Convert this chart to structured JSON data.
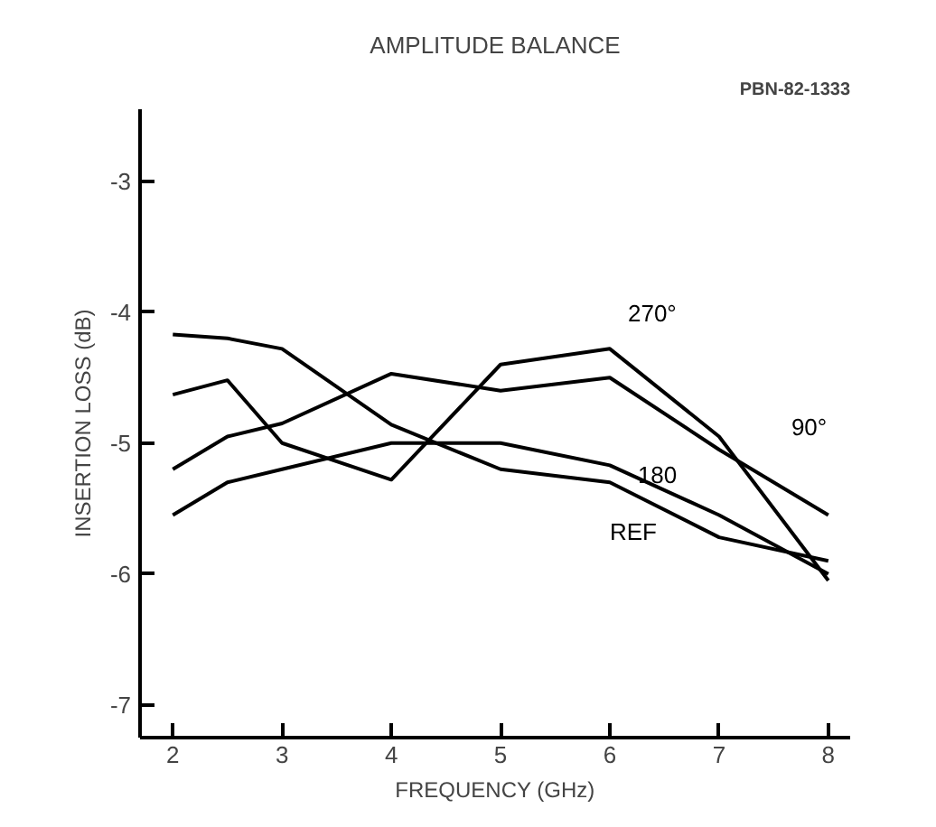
{
  "chart_data": {
    "type": "line",
    "title": "AMPLITUDE BALANCE",
    "xlabel": "FREQUENCY (GHz)",
    "ylabel": "INSERTION LOSS (dB)",
    "annotations": [
      "PBN-82-1333"
    ],
    "x": [
      2,
      2.5,
      3,
      4,
      5,
      6,
      7,
      8
    ],
    "series": [
      {
        "name": "270°",
        "color": "#000000",
        "values": [
          -4.63,
          -4.52,
          -5.0,
          -5.28,
          -4.4,
          -4.28,
          -4.95,
          -6.05
        ]
      },
      {
        "name": "90°",
        "color": "#000000",
        "values": [
          -5.2,
          -4.95,
          -4.85,
          -4.47,
          -4.6,
          -4.5,
          -5.05,
          -5.55
        ]
      },
      {
        "name": "180",
        "color": "#000000",
        "values": [
          -5.55,
          -5.3,
          -5.2,
          -5.0,
          -5.0,
          -5.17,
          -5.55,
          -6.0
        ]
      },
      {
        "name": "REF",
        "color": "#000000",
        "values": [
          -4.17,
          -4.2,
          -4.28,
          -4.86,
          -5.2,
          -5.3,
          -5.72,
          -5.9
        ]
      }
    ],
    "xlim": [
      1.7,
      8.2
    ],
    "ylim": [
      -7.25,
      -2.45
    ],
    "xticks": [
      2,
      3,
      4,
      5,
      6,
      7,
      8
    ],
    "yticks": [
      -7,
      -6,
      -5,
      -4,
      -3
    ],
    "grid": false,
    "legend": false,
    "marker": "none",
    "line_style": "solid"
  }
}
